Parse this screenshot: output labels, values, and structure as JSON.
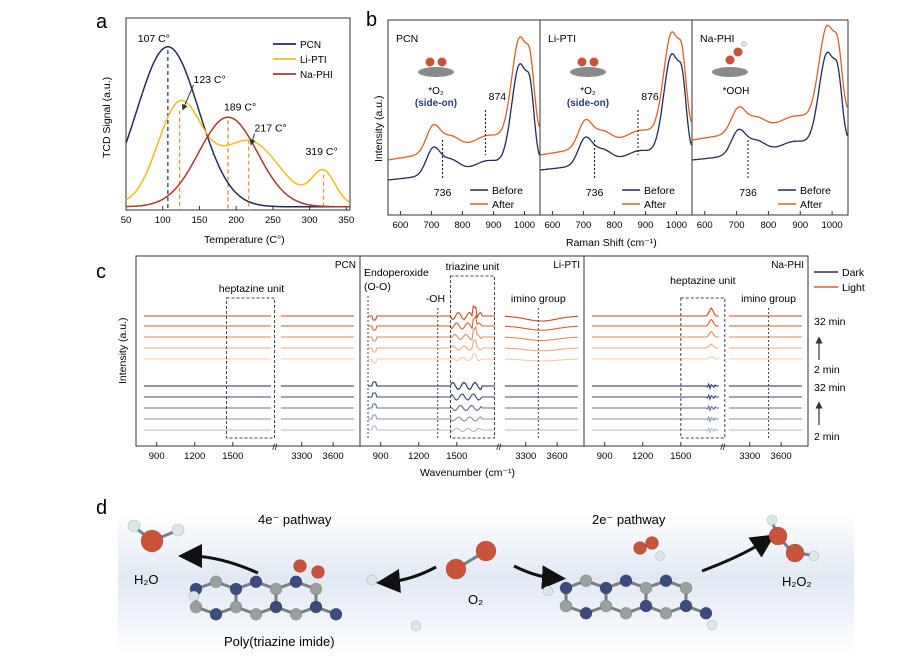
{
  "colors": {
    "pcn": "#1f2d5a",
    "liPti": "#f0be1a",
    "naPhi": "#a83a2e",
    "before": "#1f2d5a",
    "after": "#d9622a",
    "dark": "#1f2d5a",
    "light": "#d9622a",
    "oxygen": "#c9523a",
    "nitrogen": "#3d4a7e",
    "carbon": "#9aa0a0",
    "hydrogen": "#dde6e6",
    "ribbon": "#e2e9f4"
  },
  "panel_labels": {
    "a": "a",
    "b": "b",
    "c": "c",
    "d": "d"
  },
  "chart_data": [
    {
      "panel": "a",
      "type": "line",
      "title": "",
      "xlabel": "Temperature (C°)",
      "ylabel": "TCD Signal (a.u.)",
      "xlim": [
        50,
        355
      ],
      "ylim": [
        0,
        1.2
      ],
      "xticks": [
        50,
        100,
        150,
        200,
        250,
        300,
        350
      ],
      "legend": [
        "PCN",
        "Li-PTI",
        "Na-PHI"
      ],
      "series": [
        {
          "name": "PCN",
          "peaks": [
            {
              "x": 107,
              "h": 1.0,
              "w": 42
            }
          ],
          "base": 0.02
        },
        {
          "name": "Li-PTI",
          "peaks": [
            {
              "x": 123,
              "h": 0.62,
              "w": 30
            },
            {
              "x": 217,
              "h": 0.4,
              "w": 42
            },
            {
              "x": 319,
              "h": 0.2,
              "w": 16
            }
          ],
          "base": 0.03
        },
        {
          "name": "Na-PHI",
          "peaks": [
            {
              "x": 189,
              "h": 0.56,
              "w": 40
            }
          ],
          "base": 0.02
        }
      ],
      "annotations": [
        {
          "x": 107,
          "y": 1.0,
          "series": "PCN",
          "text": "107 C°"
        },
        {
          "x": 123,
          "y": 0.62,
          "series": "Li-PTI",
          "text": "123 C°"
        },
        {
          "x": 189,
          "y": 0.56,
          "series": "Na-PHI",
          "text": "189 C°"
        },
        {
          "x": 217,
          "y": 0.44,
          "series": "Li-PTI",
          "text": "217 C°"
        },
        {
          "x": 319,
          "y": 0.22,
          "series": "Li-PTI",
          "text": "319 C°"
        }
      ]
    },
    {
      "panel": "b",
      "type": "line",
      "xlabel": "Raman Shift (cm⁻¹)",
      "ylabel": "Intensity (a.u.)",
      "xlim": [
        560,
        1050
      ],
      "xticks": [
        600,
        700,
        800,
        900,
        1000
      ],
      "legend": [
        "Before",
        "After"
      ],
      "subplots": [
        {
          "name": "PCN",
          "label": "PCN",
          "species_line1": "*O₂",
          "species_line2": "(side-on)",
          "marks": [
            {
              "x": 736,
              "text": "736"
            },
            {
              "x": 874,
              "text": "874"
            }
          ]
        },
        {
          "name": "Li-PTI",
          "label": "Li-PTI",
          "species_line1": "*O₂",
          "species_line2": "(side-on)",
          "marks": [
            {
              "x": 736,
              "text": "736"
            },
            {
              "x": 876,
              "text": "876"
            }
          ]
        },
        {
          "name": "Na-PHI",
          "label": "Na-PHI",
          "species_line1": "*OOH",
          "species_line2": "",
          "marks": [
            {
              "x": 736,
              "text": "736"
            }
          ]
        }
      ]
    },
    {
      "panel": "c",
      "type": "line",
      "xlabel": "Wavenumber (cm⁻¹)",
      "ylabel": "Intensity (a.u.)",
      "xticks_low": [
        900,
        1200,
        1500
      ],
      "xticks_high": [
        3300,
        3600
      ],
      "legend": [
        "Dark",
        "Light"
      ],
      "time_labels": {
        "light_top": "32 min",
        "light_bottom": "2 min",
        "dark_top": "32 min",
        "dark_bottom": "2 min"
      },
      "subplots": [
        {
          "name": "PCN",
          "label": "PCN",
          "box_label": "heptazine unit",
          "annotations": []
        },
        {
          "name": "Li-PTI",
          "label": "Li-PTI",
          "box_label": "triazine unit",
          "annotations": [
            "Endoperoxide",
            "(O-O)",
            "-OH",
            "imino group"
          ]
        },
        {
          "name": "Na-PHI",
          "label": "Na-PHI",
          "box_label": "heptazine unit",
          "annotations": [
            "imino group"
          ]
        }
      ]
    }
  ],
  "panel_d": {
    "left_pathway": "4e⁻ pathway",
    "right_pathway": "2e⁻ pathway",
    "left_product": "H₂O",
    "right_product": "H₂O₂",
    "center_species": "O₂",
    "catalyst_label": "Poly(triazine imide)"
  }
}
